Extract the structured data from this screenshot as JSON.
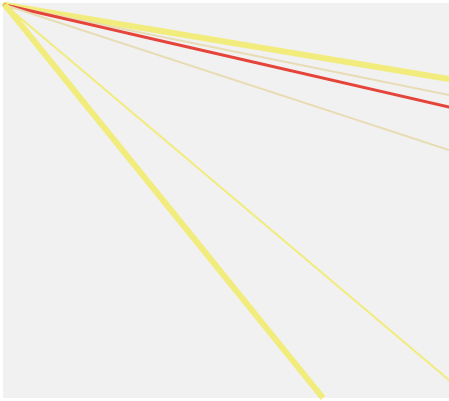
{
  "canvas": {
    "background": "#f1f1f1"
  },
  "rays": [
    {
      "name": "yellow-thick-upper",
      "color": "#f1ec7c"
    },
    {
      "name": "tan-thin-upper",
      "color": "#e8dcb4"
    },
    {
      "name": "red-ray",
      "color": "#e5443a"
    },
    {
      "name": "tan-thin-lower",
      "color": "#e8dcb4"
    },
    {
      "name": "yellow-thin-diagonal",
      "color": "#f1ec7c"
    },
    {
      "name": "yellow-thick-steep",
      "color": "#f1ec7c"
    }
  ]
}
